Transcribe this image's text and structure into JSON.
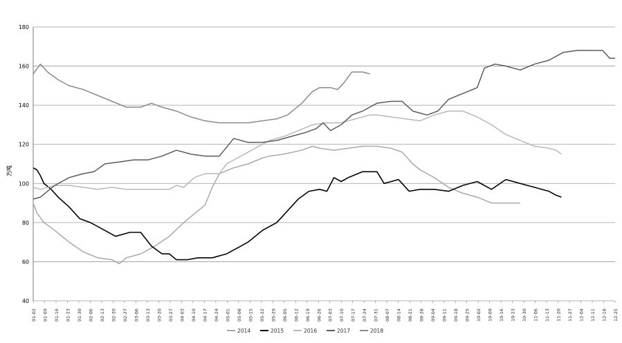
{
  "chart_data": {
    "type": "line",
    "title": "",
    "xlabel": "",
    "ylabel": "万吨",
    "ylim": [
      40,
      180
    ],
    "yticks": [
      40,
      60,
      80,
      100,
      120,
      140,
      160,
      180
    ],
    "grid": "horizontal",
    "legend_position": "bottom",
    "x_tick_labels": [
      "01-02",
      "01-09",
      "01-16",
      "01-23",
      "01-30",
      "02-06",
      "02-13",
      "02-20",
      "02-27",
      "03-06",
      "03-13",
      "03-20",
      "03-27",
      "04-03",
      "04-10",
      "04-17",
      "04-24",
      "05-01",
      "05-08",
      "05-15",
      "05-22",
      "05-29",
      "06-05",
      "06-12",
      "06-19",
      "06-26",
      "07-03",
      "07-10",
      "07-17",
      "07-24",
      "07-31",
      "08-07",
      "08-14",
      "08-21",
      "08-28",
      "09-04",
      "09-11",
      "09-18",
      "09-25",
      "10-02",
      "10-09",
      "10-16",
      "10-23",
      "10-30",
      "11-06",
      "11-13",
      "11-20",
      "11-27",
      "12-04",
      "12-11",
      "12-18",
      "12-25"
    ],
    "series": [
      {
        "name": "2014",
        "color": "#a8a8a8",
        "points": [
          [
            0,
            90
          ],
          [
            2,
            85
          ],
          [
            6,
            80
          ],
          [
            12,
            76
          ],
          [
            20,
            70
          ],
          [
            28,
            65
          ],
          [
            36,
            62
          ],
          [
            44,
            61
          ],
          [
            48,
            59
          ],
          [
            52,
            62
          ],
          [
            60,
            64
          ],
          [
            68,
            68
          ],
          [
            76,
            73
          ],
          [
            84,
            80
          ],
          [
            92,
            86
          ],
          [
            96,
            89
          ],
          [
            100,
            98
          ],
          [
            104,
            105
          ],
          [
            112,
            108
          ],
          [
            120,
            110
          ],
          [
            128,
            113
          ],
          [
            132,
            114
          ],
          [
            140,
            115
          ],
          [
            150,
            117
          ],
          [
            156,
            119
          ],
          [
            160,
            118
          ],
          [
            168,
            117
          ],
          [
            176,
            118
          ],
          [
            184,
            119
          ],
          [
            192,
            119
          ],
          [
            200,
            118
          ],
          [
            206,
            116
          ],
          [
            212,
            110
          ],
          [
            216,
            107
          ],
          [
            224,
            103
          ],
          [
            232,
            98
          ],
          [
            240,
            95
          ],
          [
            248,
            93
          ],
          [
            256,
            90
          ],
          [
            264,
            90
          ],
          [
            272,
            90
          ]
        ]
      },
      {
        "name": "2015",
        "color": "#000000",
        "points": [
          [
            0,
            108
          ],
          [
            2,
            107
          ],
          [
            4,
            104
          ],
          [
            6,
            100
          ],
          [
            10,
            97
          ],
          [
            14,
            93
          ],
          [
            20,
            88
          ],
          [
            26,
            82
          ],
          [
            32,
            80
          ],
          [
            38,
            77
          ],
          [
            46,
            73
          ],
          [
            54,
            75
          ],
          [
            60,
            75
          ],
          [
            66,
            68
          ],
          [
            72,
            64
          ],
          [
            76,
            64
          ],
          [
            80,
            61
          ],
          [
            86,
            61
          ],
          [
            92,
            62
          ],
          [
            100,
            62
          ],
          [
            108,
            64
          ],
          [
            116,
            68
          ],
          [
            120,
            70
          ],
          [
            128,
            76
          ],
          [
            136,
            80
          ],
          [
            142,
            86
          ],
          [
            148,
            92
          ],
          [
            154,
            96
          ],
          [
            160,
            97
          ],
          [
            164,
            96
          ],
          [
            168,
            103
          ],
          [
            172,
            101
          ],
          [
            176,
            103
          ],
          [
            184,
            106
          ],
          [
            192,
            106
          ],
          [
            196,
            100
          ],
          [
            204,
            102
          ],
          [
            210,
            96
          ],
          [
            216,
            97
          ],
          [
            224,
            97
          ],
          [
            232,
            96
          ],
          [
            240,
            99
          ],
          [
            248,
            101
          ],
          [
            256,
            97
          ],
          [
            264,
            102
          ],
          [
            272,
            100
          ],
          [
            280,
            98
          ],
          [
            288,
            96
          ],
          [
            292,
            94
          ],
          [
            295,
            93
          ]
        ]
      },
      {
        "name": "2016",
        "color": "#b8b8b8",
        "points": [
          [
            0,
            98
          ],
          [
            4,
            97
          ],
          [
            12,
            99
          ],
          [
            20,
            99
          ],
          [
            28,
            98
          ],
          [
            36,
            97
          ],
          [
            44,
            98
          ],
          [
            52,
            97
          ],
          [
            60,
            97
          ],
          [
            68,
            97
          ],
          [
            76,
            97
          ],
          [
            80,
            99
          ],
          [
            84,
            98
          ],
          [
            90,
            103
          ],
          [
            96,
            105
          ],
          [
            104,
            105
          ],
          [
            108,
            110
          ],
          [
            116,
            114
          ],
          [
            124,
            118
          ],
          [
            132,
            122
          ],
          [
            140,
            124
          ],
          [
            148,
            127
          ],
          [
            156,
            130
          ],
          [
            164,
            131
          ],
          [
            172,
            131
          ],
          [
            180,
            133
          ],
          [
            188,
            135
          ],
          [
            192,
            135
          ],
          [
            200,
            134
          ],
          [
            208,
            133
          ],
          [
            216,
            132
          ],
          [
            224,
            135
          ],
          [
            232,
            137
          ],
          [
            240,
            137
          ],
          [
            248,
            134
          ],
          [
            256,
            130
          ],
          [
            264,
            125
          ],
          [
            272,
            122
          ],
          [
            280,
            119
          ],
          [
            288,
            118
          ],
          [
            292,
            117
          ],
          [
            295,
            115
          ]
        ]
      },
      {
        "name": "2017",
        "color": "#5a5a5a",
        "points": [
          [
            0,
            92
          ],
          [
            4,
            93
          ],
          [
            8,
            96
          ],
          [
            12,
            99
          ],
          [
            20,
            103
          ],
          [
            28,
            105
          ],
          [
            34,
            106
          ],
          [
            40,
            110
          ],
          [
            48,
            111
          ],
          [
            56,
            112
          ],
          [
            64,
            112
          ],
          [
            72,
            114
          ],
          [
            80,
            117
          ],
          [
            88,
            115
          ],
          [
            96,
            114
          ],
          [
            104,
            114
          ],
          [
            112,
            123
          ],
          [
            120,
            121
          ],
          [
            128,
            121
          ],
          [
            136,
            122
          ],
          [
            144,
            124
          ],
          [
            152,
            126
          ],
          [
            158,
            128
          ],
          [
            162,
            131
          ],
          [
            166,
            127
          ],
          [
            172,
            130
          ],
          [
            178,
            135
          ],
          [
            184,
            137
          ],
          [
            192,
            141
          ],
          [
            200,
            142
          ],
          [
            206,
            142
          ],
          [
            212,
            137
          ],
          [
            216,
            136
          ],
          [
            220,
            135
          ],
          [
            226,
            137
          ],
          [
            232,
            143
          ],
          [
            240,
            146
          ],
          [
            248,
            149
          ],
          [
            252,
            159
          ],
          [
            258,
            161
          ],
          [
            264,
            160
          ],
          [
            272,
            158
          ],
          [
            280,
            161
          ],
          [
            288,
            163
          ],
          [
            296,
            167
          ],
          [
            304,
            168
          ],
          [
            312,
            168
          ],
          [
            318,
            168
          ],
          [
            322,
            164
          ],
          [
            325,
            164
          ]
        ]
      },
      {
        "name": "2018",
        "color": "#8a8a8a",
        "points": [
          [
            0,
            156
          ],
          [
            4,
            161
          ],
          [
            8,
            157
          ],
          [
            14,
            153
          ],
          [
            20,
            150
          ],
          [
            28,
            148
          ],
          [
            36,
            145
          ],
          [
            44,
            142
          ],
          [
            52,
            139
          ],
          [
            60,
            139
          ],
          [
            66,
            141
          ],
          [
            72,
            139
          ],
          [
            80,
            137
          ],
          [
            88,
            134
          ],
          [
            96,
            132
          ],
          [
            104,
            131
          ],
          [
            112,
            131
          ],
          [
            120,
            131
          ],
          [
            128,
            132
          ],
          [
            136,
            133
          ],
          [
            142,
            135
          ],
          [
            150,
            141
          ],
          [
            156,
            147
          ],
          [
            160,
            149
          ],
          [
            166,
            149
          ],
          [
            170,
            148
          ],
          [
            174,
            152
          ],
          [
            178,
            157
          ],
          [
            184,
            157
          ],
          [
            188,
            156
          ]
        ]
      }
    ]
  }
}
